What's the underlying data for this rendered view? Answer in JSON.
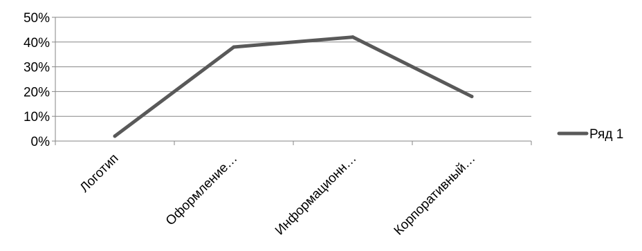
{
  "chart_data": {
    "type": "line",
    "title": "",
    "xlabel": "",
    "ylabel": "",
    "categories": [
      "Логотип",
      "Оформление…",
      "Информационн…",
      "Корпоративный…"
    ],
    "series": [
      {
        "name": "Ряд 1",
        "values": [
          0.02,
          0.38,
          0.42,
          0.18
        ]
      }
    ],
    "ylim": [
      0,
      0.5
    ],
    "y_ticks": [
      0,
      0.1,
      0.2,
      0.3,
      0.4,
      0.5
    ],
    "y_tick_labels": [
      "0%",
      "10%",
      "20%",
      "30%",
      "40%",
      "50%"
    ],
    "grid": "horizontal",
    "legend": "right",
    "colors": {
      "series": "#595959",
      "grid": "#868686",
      "axis": "#868686"
    }
  }
}
